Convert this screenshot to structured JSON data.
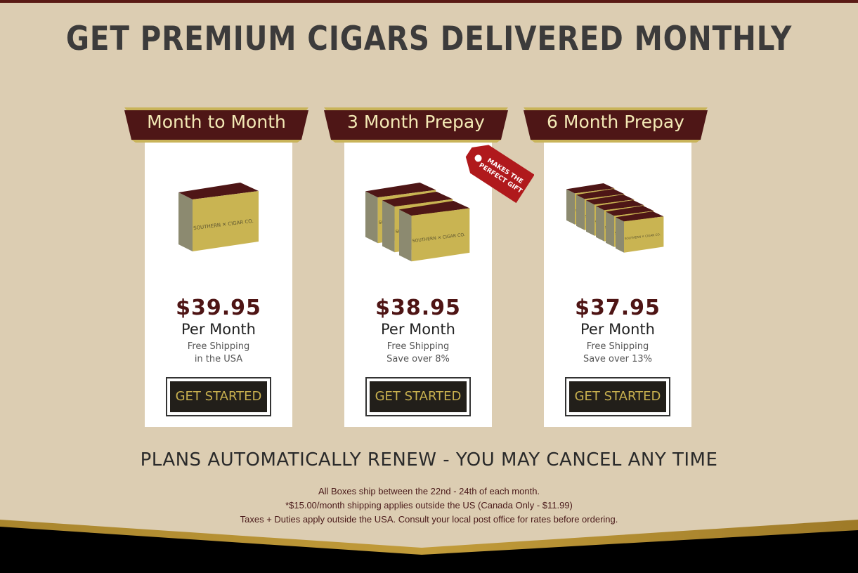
{
  "header": {
    "title": "GET PREMIUM CIGARS DELIVERED MONTHLY"
  },
  "colors": {
    "background": "#dccdb2",
    "banner": "#4e1616",
    "banner_trim": "#c9b45a",
    "price": "#4e1414",
    "button": "#221f1a",
    "button_text": "#c9b14f",
    "tag": "#b0191c"
  },
  "plans": [
    {
      "name": "Month to Month",
      "price": "$39.95",
      "period": "Per Month",
      "line1": "Free Shipping",
      "line2": "in the USA",
      "button": "GET STARTED",
      "boxes": 1
    },
    {
      "name": "3 Month Prepay",
      "price": "$38.95",
      "period": "Per Month",
      "line1": "Free Shipping",
      "line2": "Save over 8%",
      "button": "GET STARTED",
      "boxes": 3
    },
    {
      "name": "6 Month Prepay",
      "price": "$37.95",
      "period": "Per Month",
      "line1": "Free Shipping",
      "line2": "Save over 13%",
      "button": "GET STARTED",
      "boxes": 6
    }
  ],
  "gift_tag": {
    "line1": "MAKES THE",
    "line2": "PERFECT GIFT"
  },
  "box_label": {
    "left": "SOUTHERN",
    "right": "CIGAR CO."
  },
  "renew_notice": "PLANS AUTOMATICALLY RENEW - YOU MAY CANCEL ANY TIME",
  "notes": [
    "All Boxes ship between the 22nd - 24th of each month.",
    "*$15.00/month shipping applies outside the US (Canada Only - $11.99)",
    "Taxes + Duties apply outside the USA. Consult your local post office for rates before ordering."
  ]
}
